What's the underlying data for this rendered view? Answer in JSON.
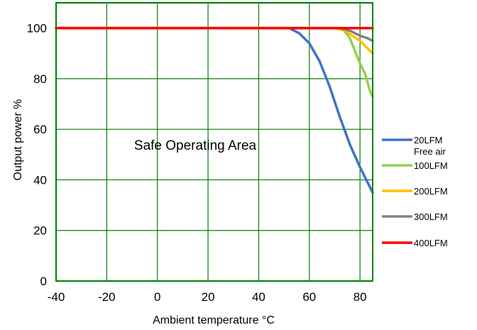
{
  "chart_data": {
    "type": "line",
    "xlabel": "Ambient temperature °C",
    "ylabel": "Output power %",
    "xlim": [
      -40,
      85
    ],
    "ylim": [
      0,
      110
    ],
    "xticks": [
      -40,
      -20,
      0,
      20,
      40,
      60,
      80
    ],
    "yticks": [
      0,
      20,
      40,
      60,
      80,
      100
    ],
    "grid": true,
    "annotation": "Safe Operating Area",
    "legend_position": "right",
    "series": [
      {
        "name": "20LFM",
        "subname": "Free air",
        "color": "#4472C4",
        "x": [
          -40,
          40,
          52,
          56,
          60,
          64,
          68,
          72,
          76,
          80,
          85
        ],
        "y": [
          100,
          100,
          100,
          98,
          94,
          87,
          77,
          65,
          54,
          45,
          35
        ]
      },
      {
        "name": "100LFM",
        "color": "#92D050",
        "x": [
          -40,
          70,
          73,
          76,
          78,
          80,
          82,
          84,
          85
        ],
        "y": [
          100,
          100,
          100,
          96,
          91,
          86,
          82,
          75,
          73
        ]
      },
      {
        "name": "200LFM",
        "color": "#FFC000",
        "x": [
          -40,
          70,
          74,
          77,
          80,
          82,
          85
        ],
        "y": [
          100,
          100,
          99,
          97,
          95,
          93,
          90
        ]
      },
      {
        "name": "300LFM",
        "color": "#808080",
        "x": [
          -40,
          72,
          76,
          80,
          83,
          85
        ],
        "y": [
          100,
          100,
          99,
          97,
          96,
          95
        ]
      },
      {
        "name": "400LFM",
        "color": "#FF0000",
        "x": [
          -40,
          85
        ],
        "y": [
          100,
          100
        ]
      }
    ]
  }
}
